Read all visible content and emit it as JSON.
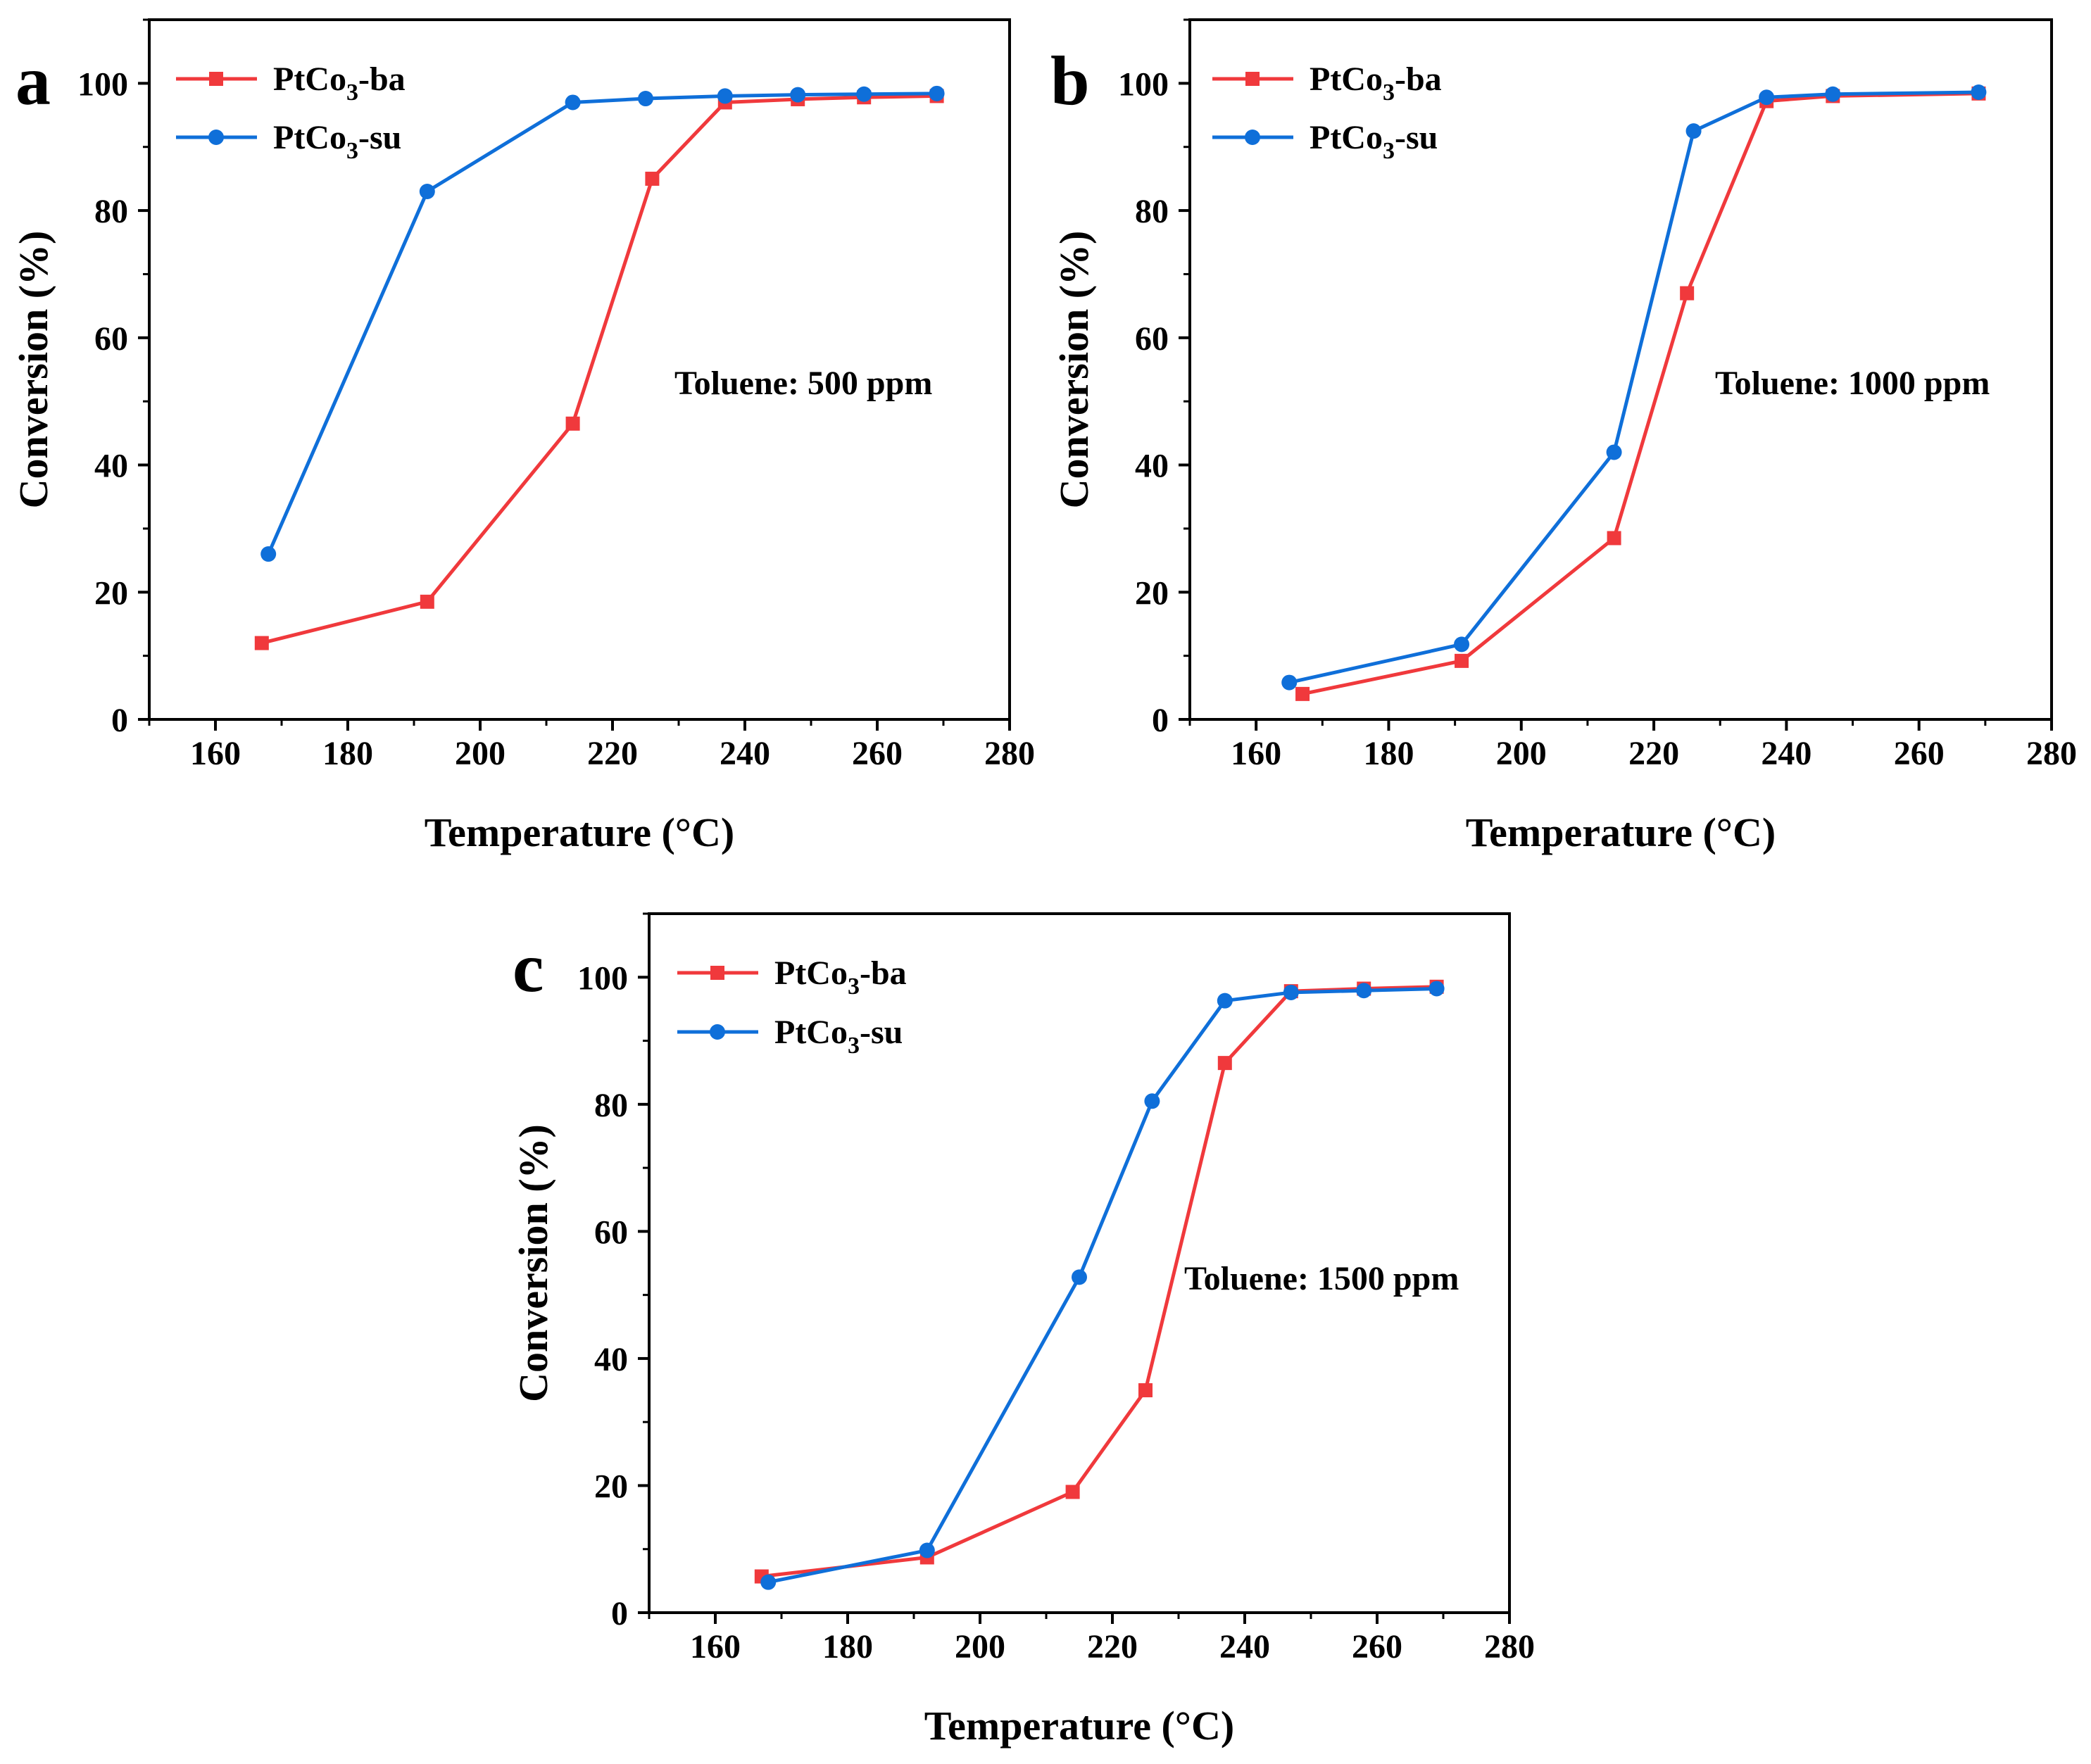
{
  "chart_data": [
    {
      "panel": "a",
      "type": "line",
      "xlabel": "Temperature (°C)",
      "ylabel": "Conversion (%)",
      "xlim": [
        150,
        280
      ],
      "ylim": [
        0,
        110
      ],
      "xticks": [
        "160",
        "180",
        "200",
        "220",
        "240",
        "260",
        "280"
      ],
      "yticks": [
        "0",
        "20",
        "40",
        "60",
        "80",
        "100"
      ],
      "annotation": "Toluene: 500 ppm",
      "legend_position": "top-left",
      "series": [
        {
          "name": "PtCo3-ba",
          "label_main": "PtCo",
          "label_sub": "3",
          "label_suffix": "-ba",
          "color": "#f0393c",
          "marker": "square",
          "x": [
            167,
            192,
            214,
            226,
            237,
            248,
            258,
            269
          ],
          "y": [
            12,
            18.5,
            46.5,
            85,
            97,
            97.5,
            97.8,
            98
          ]
        },
        {
          "name": "PtCo3-su",
          "label_main": "PtCo",
          "label_sub": "3",
          "label_suffix": "-su",
          "color": "#0f6fd9",
          "marker": "circle",
          "x": [
            168,
            192,
            214,
            225,
            237,
            248,
            258,
            269
          ],
          "y": [
            26,
            83,
            97,
            97.6,
            98,
            98.2,
            98.3,
            98.4
          ]
        }
      ]
    },
    {
      "panel": "b",
      "type": "line",
      "xlabel": "Temperature (°C)",
      "ylabel": "Conversion (%)",
      "xlim": [
        150,
        280
      ],
      "ylim": [
        0,
        110
      ],
      "xticks": [
        "160",
        "180",
        "200",
        "220",
        "240",
        "260",
        "280"
      ],
      "yticks": [
        "0",
        "20",
        "40",
        "60",
        "80",
        "100"
      ],
      "annotation": "Toluene: 1000 ppm",
      "legend_position": "top-left",
      "series": [
        {
          "name": "PtCo3-ba",
          "label_main": "PtCo",
          "label_sub": "3",
          "label_suffix": "-ba",
          "color": "#f0393c",
          "marker": "square",
          "x": [
            167,
            191,
            214,
            225,
            237,
            247,
            269
          ],
          "y": [
            4,
            9.2,
            28.5,
            67,
            97.2,
            98,
            98.4
          ]
        },
        {
          "name": "PtCo3-su",
          "label_main": "PtCo",
          "label_sub": "3",
          "label_suffix": "-su",
          "color": "#0f6fd9",
          "marker": "circle",
          "x": [
            165,
            191,
            214,
            226,
            237,
            247,
            269
          ],
          "y": [
            5.8,
            11.8,
            42,
            92.5,
            97.8,
            98.3,
            98.6
          ]
        }
      ]
    },
    {
      "panel": "c",
      "type": "line",
      "xlabel": "Temperature (°C)",
      "ylabel": "Conversion (%)",
      "xlim": [
        150,
        280
      ],
      "ylim": [
        0,
        110
      ],
      "xticks": [
        "160",
        "180",
        "200",
        "220",
        "240",
        "260",
        "280"
      ],
      "yticks": [
        "0",
        "20",
        "40",
        "60",
        "80",
        "100"
      ],
      "annotation": "Toluene: 1500 ppm",
      "legend_position": "top-left",
      "series": [
        {
          "name": "PtCo3-ba",
          "label_main": "PtCo",
          "label_sub": "3",
          "label_suffix": "-ba",
          "color": "#f0393c",
          "marker": "square",
          "x": [
            167,
            192,
            214,
            225,
            237,
            247,
            258,
            269
          ],
          "y": [
            5.7,
            8.7,
            19,
            35,
            86.5,
            97.8,
            98.2,
            98.5
          ]
        },
        {
          "name": "PtCo3-su",
          "label_main": "PtCo",
          "label_sub": "3",
          "label_suffix": "-su",
          "color": "#0f6fd9",
          "marker": "circle",
          "x": [
            168,
            192,
            215,
            226,
            237,
            247,
            258,
            269
          ],
          "y": [
            4.8,
            9.8,
            52.8,
            80.5,
            96.3,
            97.6,
            97.9,
            98.2
          ]
        }
      ]
    }
  ]
}
